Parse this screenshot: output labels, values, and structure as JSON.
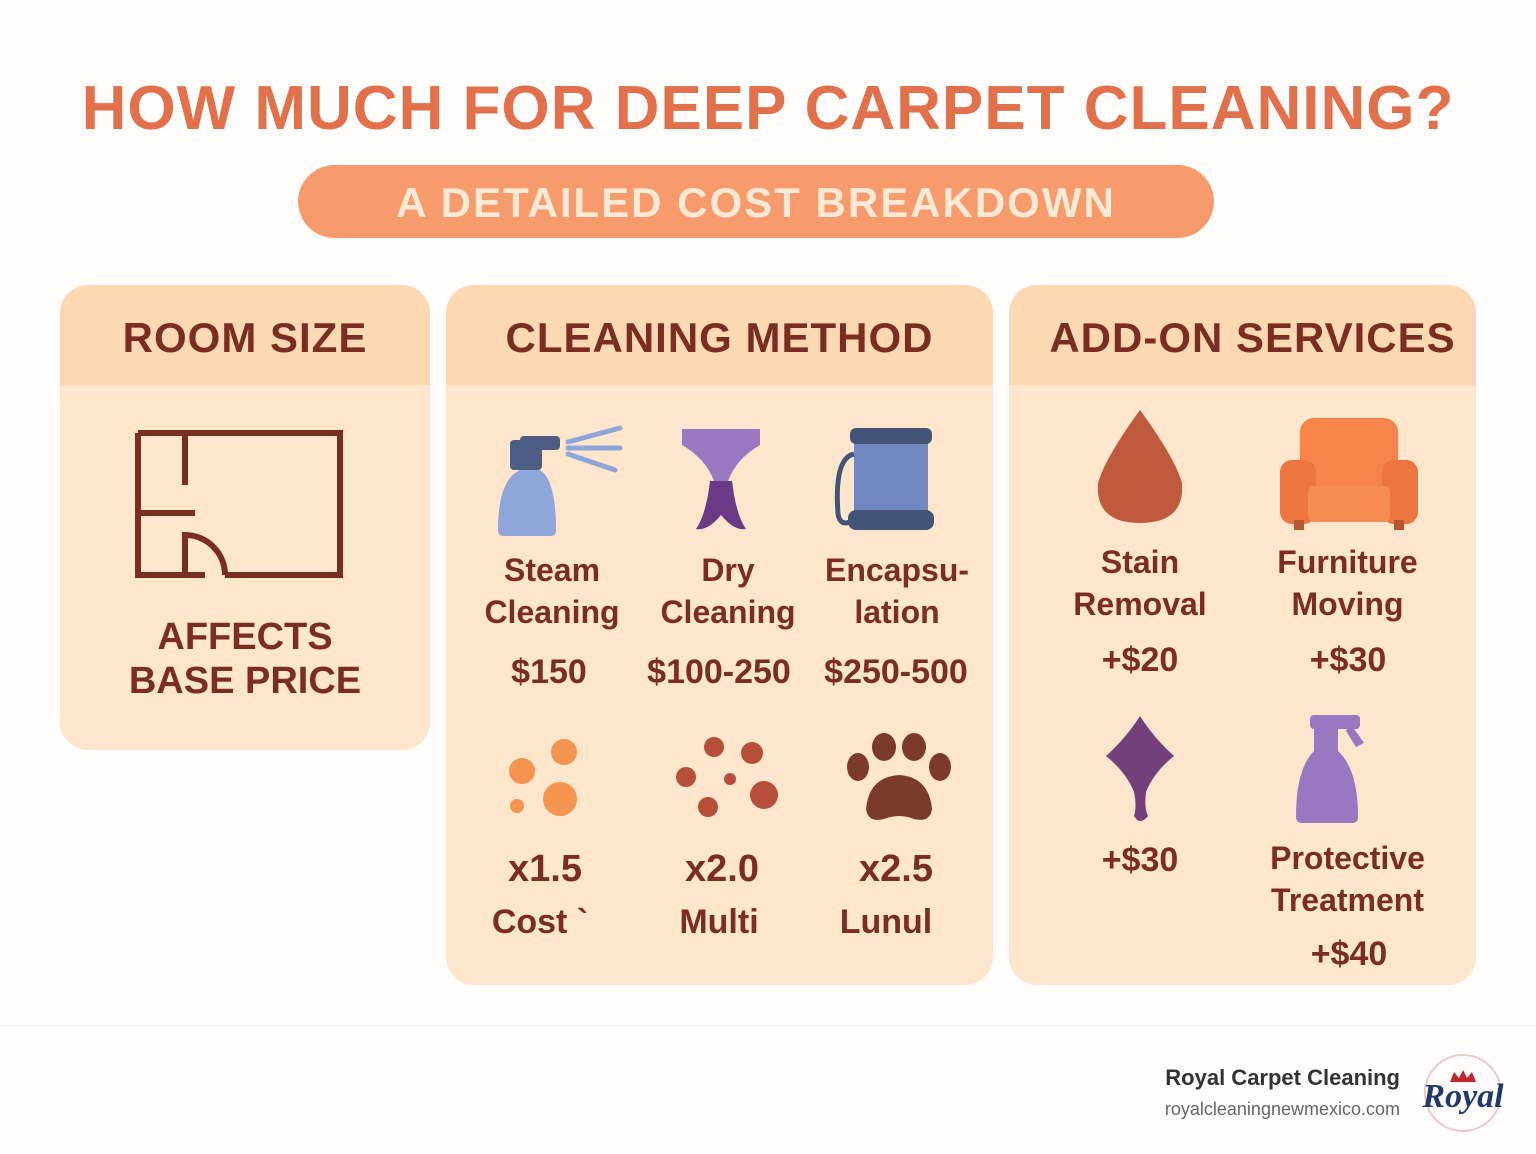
{
  "title": "HOW MUCH FOR DEEP CARPET CLEANING?",
  "subtitle": "A DETAILED COST BREAKDOWN",
  "panels": [
    {
      "heading": "ROOM SIZE",
      "note": "AFFECTS\nBASE PRICE"
    },
    {
      "heading": "CLEANING METHOD",
      "items": [
        {
          "label": "Steam\nCleaning",
          "price": "$150"
        },
        {
          "label": "Dry\nCleaning",
          "price": "$100-250"
        },
        {
          "label": "Encapsu-\nlation",
          "price": "$250-500"
        }
      ],
      "factors": [
        {
          "value": "x1.5",
          "label": "Cost `"
        },
        {
          "value": "x2.0",
          "label": "Multi"
        },
        {
          "value": "x2.5",
          "label": "Lunul"
        }
      ]
    },
    {
      "heading": "ADD-ON SERVICES",
      "items": [
        {
          "label": "Stain\nRemoval",
          "price": "+$20"
        },
        {
          "label": "Furniture\nMoving",
          "price": "+$30"
        },
        {
          "price": "+$30"
        },
        {
          "label": "Protective\nTreatment",
          "price": "+$40"
        }
      ]
    }
  ],
  "footer": {
    "brand": "Royal Carpet Cleaning",
    "url": "royalcleaningnewmexico.com",
    "logo": "Royal"
  }
}
